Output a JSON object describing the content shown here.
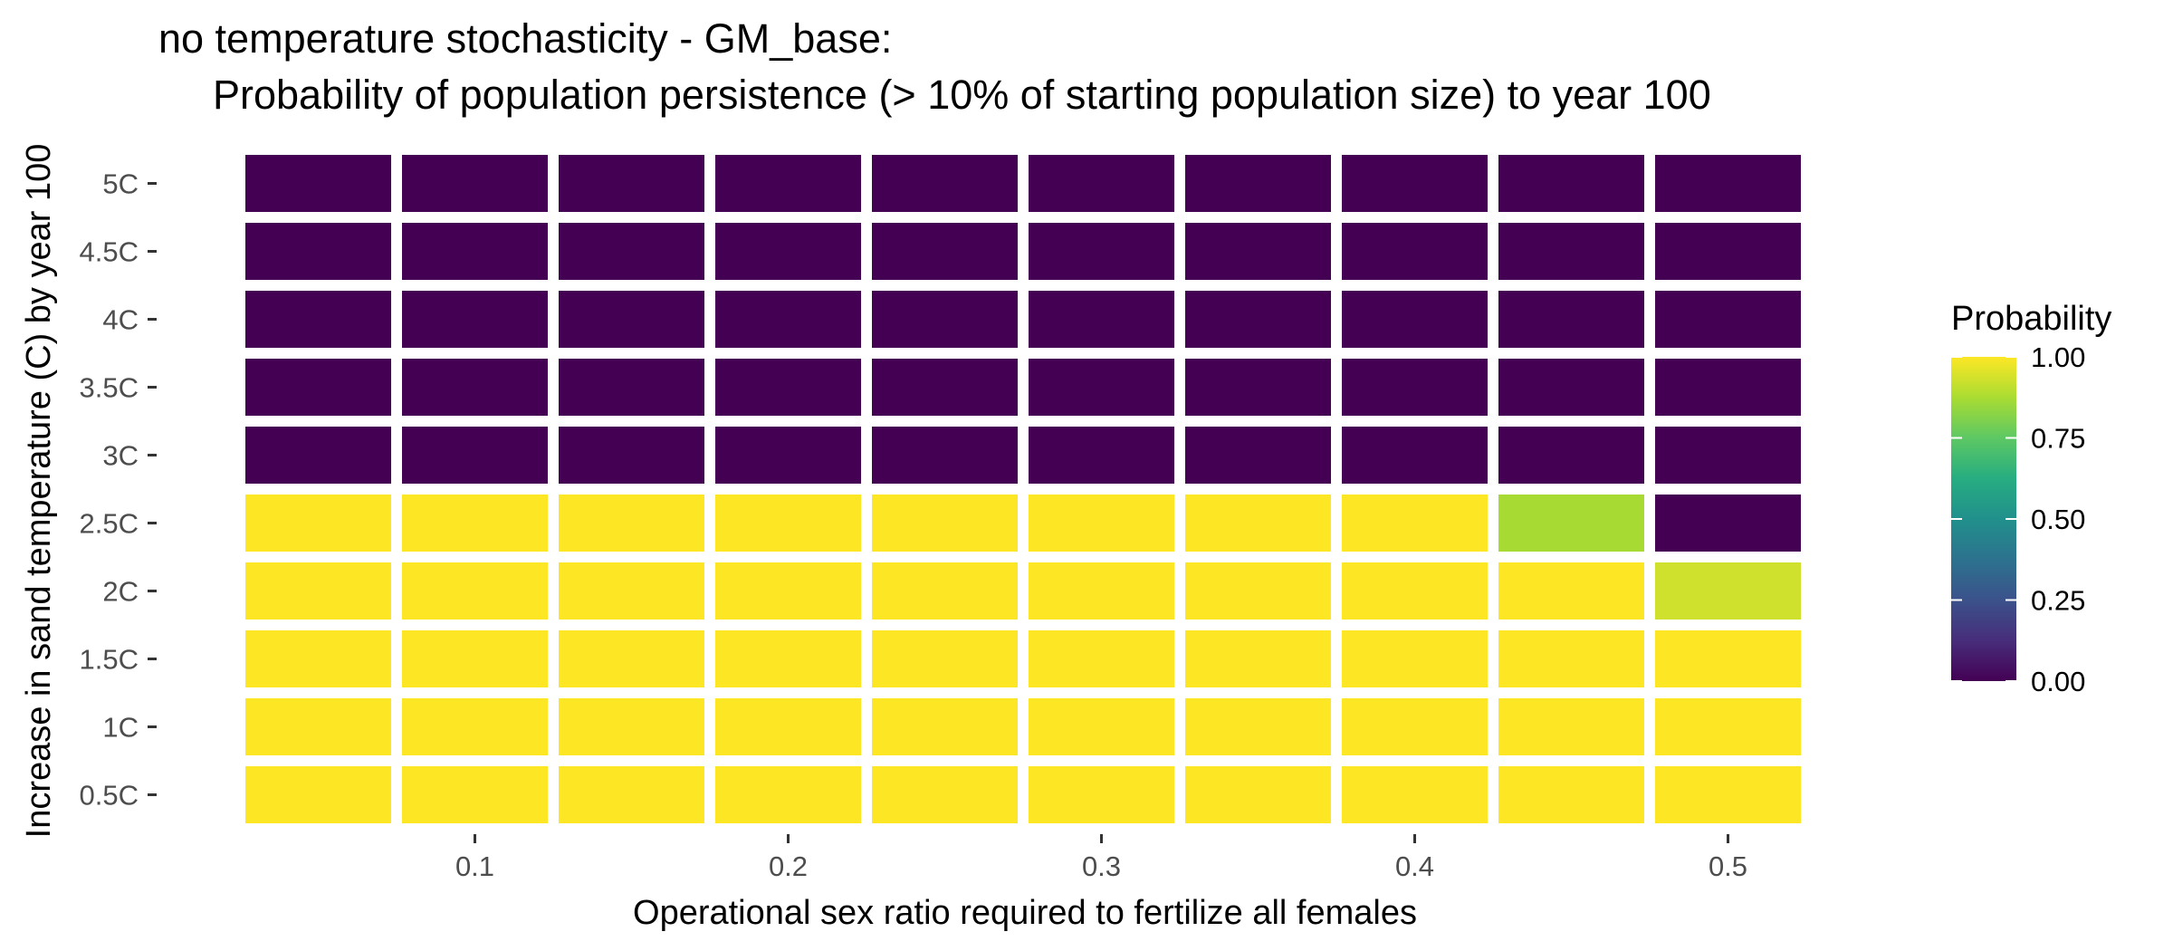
{
  "chart_data": {
    "type": "heatmap",
    "title_line1": "no temperature stochasticity - GM_base:",
    "title_line2": "Probability of population persistence (> 10% of starting population size) to year 100",
    "xlabel": "Operational sex ratio required to fertilize all females",
    "ylabel": "Increase in sand temperature (C) by year 100",
    "x_values": [
      0.05,
      0.1,
      0.15,
      0.2,
      0.25,
      0.3,
      0.35,
      0.4,
      0.45,
      0.5
    ],
    "x_ticks": [
      0.1,
      0.2,
      0.3,
      0.4,
      0.5
    ],
    "x_tick_labels": [
      "0.1",
      "0.2",
      "0.3",
      "0.4",
      "0.5"
    ],
    "xlim": [
      0.025,
      0.525
    ],
    "y_categories": [
      "0.5C",
      "1C",
      "1.5C",
      "2C",
      "2.5C",
      "3C",
      "3.5C",
      "4C",
      "4.5C",
      "5C"
    ],
    "values": [
      [
        1,
        1,
        1,
        1,
        1,
        1,
        1,
        1,
        1,
        1
      ],
      [
        1,
        1,
        1,
        1,
        1,
        1,
        1,
        1,
        1,
        1
      ],
      [
        1,
        1,
        1,
        1,
        1,
        1,
        1,
        1,
        1,
        1
      ],
      [
        1,
        1,
        1,
        1,
        1,
        1,
        1,
        1,
        1,
        0.93
      ],
      [
        1,
        1,
        1,
        1,
        1,
        1,
        1,
        1,
        0.87,
        0
      ],
      [
        0,
        0,
        0,
        0,
        0,
        0,
        0,
        0,
        0,
        0
      ],
      [
        0,
        0,
        0,
        0,
        0,
        0,
        0,
        0,
        0,
        0
      ],
      [
        0,
        0,
        0,
        0,
        0,
        0,
        0,
        0,
        0,
        0
      ],
      [
        0,
        0,
        0,
        0,
        0,
        0,
        0,
        0,
        0,
        0
      ],
      [
        0,
        0,
        0,
        0,
        0,
        0,
        0,
        0,
        0,
        0
      ]
    ],
    "legend": {
      "title": "Probability",
      "range": [
        0,
        1
      ],
      "ticks": [
        0,
        0.25,
        0.5,
        0.75,
        1
      ],
      "tick_labels": [
        "0.00",
        "0.25",
        "0.50",
        "0.75",
        "1.00"
      ]
    },
    "colorscale": "viridis",
    "colors": {
      "low": "#440154",
      "mid": "#21908C",
      "high": "#FDE725",
      "background": "#ffffff",
      "tile_border": "#ffffff"
    }
  }
}
